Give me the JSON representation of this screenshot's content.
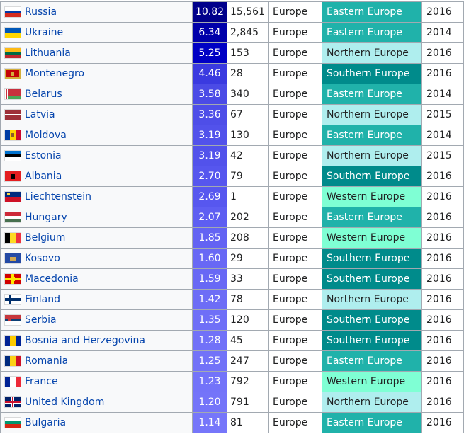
{
  "table": {
    "rows": [
      {
        "country": "Russia",
        "rate": "10.82",
        "count": "15,561",
        "continent": "Europe",
        "region": "Eastern Europe",
        "year": "2016",
        "flag": "russia-flag-icon",
        "rate_color": "#00008b",
        "region_color": "#20b2aa",
        "region_text_color": "#ffffff"
      },
      {
        "country": "Ukraine",
        "rate": "6.34",
        "count": "2,845",
        "continent": "Europe",
        "region": "Eastern Europe",
        "year": "2014",
        "flag": "ukraine-flag-icon",
        "rate_color": "#0000aa",
        "region_color": "#20b2aa",
        "region_text_color": "#ffffff"
      },
      {
        "country": "Lithuania",
        "rate": "5.25",
        "count": "153",
        "continent": "Europe",
        "region": "Northern Europe",
        "year": "2016",
        "flag": "lithuania-flag-icon",
        "rate_color": "#0000c4",
        "region_color": "#afeeee",
        "region_text_color": "#202122"
      },
      {
        "country": "Montenegro",
        "rate": "4.46",
        "count": "28",
        "continent": "Europe",
        "region": "Southern Europe",
        "year": "2016",
        "flag": "montenegro-flag-icon",
        "rate_color": "#3a3ae0",
        "region_color": "#008b8b",
        "region_text_color": "#ffffff"
      },
      {
        "country": "Belarus",
        "rate": "3.58",
        "count": "340",
        "continent": "Europe",
        "region": "Eastern Europe",
        "year": "2014",
        "flag": "belarus-flag-icon",
        "rate_color": "#4b4be6",
        "region_color": "#20b2aa",
        "region_text_color": "#ffffff"
      },
      {
        "country": "Latvia",
        "rate": "3.36",
        "count": "67",
        "continent": "Europe",
        "region": "Northern Europe",
        "year": "2015",
        "flag": "latvia-flag-icon",
        "rate_color": "#4e4ee8",
        "region_color": "#afeeee",
        "region_text_color": "#202122"
      },
      {
        "country": "Moldova",
        "rate": "3.19",
        "count": "130",
        "continent": "Europe",
        "region": "Eastern Europe",
        "year": "2014",
        "flag": "moldova-flag-icon",
        "rate_color": "#5252eb",
        "region_color": "#20b2aa",
        "region_text_color": "#ffffff"
      },
      {
        "country": "Estonia",
        "rate": "3.19",
        "count": "42",
        "continent": "Europe",
        "region": "Northern Europe",
        "year": "2015",
        "flag": "estonia-flag-icon",
        "rate_color": "#5252eb",
        "region_color": "#afeeee",
        "region_text_color": "#202122"
      },
      {
        "country": "Albania",
        "rate": "2.70",
        "count": "79",
        "continent": "Europe",
        "region": "Southern Europe",
        "year": "2016",
        "flag": "albania-flag-icon",
        "rate_color": "#5656ee",
        "region_color": "#008b8b",
        "region_text_color": "#ffffff"
      },
      {
        "country": "Liechtenstein",
        "rate": "2.69",
        "count": "1",
        "continent": "Europe",
        "region": "Western Europe",
        "year": "2016",
        "flag": "liechtenstein-flag-icon",
        "rate_color": "#5757ef",
        "region_color": "#7fffd4",
        "region_text_color": "#202122"
      },
      {
        "country": "Hungary",
        "rate": "2.07",
        "count": "202",
        "continent": "Europe",
        "region": "Eastern Europe",
        "year": "2016",
        "flag": "hungary-flag-icon",
        "rate_color": "#5e5ef2",
        "region_color": "#20b2aa",
        "region_text_color": "#ffffff"
      },
      {
        "country": "Belgium",
        "rate": "1.85",
        "count": "208",
        "continent": "Europe",
        "region": "Western Europe",
        "year": "2016",
        "flag": "belgium-flag-icon",
        "rate_color": "#6363f3",
        "region_color": "#7fffd4",
        "region_text_color": "#202122"
      },
      {
        "country": "Kosovo",
        "rate": "1.60",
        "count": "29",
        "continent": "Europe",
        "region": "Southern Europe",
        "year": "2016",
        "flag": "kosovo-flag-icon",
        "rate_color": "#6868f5",
        "region_color": "#008b8b",
        "region_text_color": "#ffffff"
      },
      {
        "country": "Macedonia",
        "rate": "1.59",
        "count": "33",
        "continent": "Europe",
        "region": "Southern Europe",
        "year": "2016",
        "flag": "macedonia-flag-icon",
        "rate_color": "#6868f5",
        "region_color": "#008b8b",
        "region_text_color": "#ffffff"
      },
      {
        "country": "Finland",
        "rate": "1.42",
        "count": "78",
        "continent": "Europe",
        "region": "Northern Europe",
        "year": "2016",
        "flag": "finland-flag-icon",
        "rate_color": "#6d6df6",
        "region_color": "#afeeee",
        "region_text_color": "#202122"
      },
      {
        "country": "Serbia",
        "rate": "1.35",
        "count": "120",
        "continent": "Europe",
        "region": "Southern Europe",
        "year": "2016",
        "flag": "serbia-flag-icon",
        "rate_color": "#6f6ff7",
        "region_color": "#008b8b",
        "region_text_color": "#ffffff"
      },
      {
        "country": "Bosnia and Herzegovina",
        "rate": "1.28",
        "count": "45",
        "continent": "Europe",
        "region": "Southern Europe",
        "year": "2016",
        "flag": "bosnia-flag-icon",
        "rate_color": "#7171f8",
        "region_color": "#008b8b",
        "region_text_color": "#ffffff"
      },
      {
        "country": "Romania",
        "rate": "1.25",
        "count": "247",
        "continent": "Europe",
        "region": "Eastern Europe",
        "year": "2016",
        "flag": "romania-flag-icon",
        "rate_color": "#7272f8",
        "region_color": "#20b2aa",
        "region_text_color": "#ffffff"
      },
      {
        "country": "France",
        "rate": "1.23",
        "count": "792",
        "continent": "Europe",
        "region": "Western Europe",
        "year": "2016",
        "flag": "france-flag-icon",
        "rate_color": "#7373f9",
        "region_color": "#7fffd4",
        "region_text_color": "#202122"
      },
      {
        "country": "United Kingdom",
        "rate": "1.20",
        "count": "791",
        "continent": "Europe",
        "region": "Northern Europe",
        "year": "2016",
        "flag": "uk-flag-icon",
        "rate_color": "#7474f9",
        "region_color": "#afeeee",
        "region_text_color": "#202122"
      },
      {
        "country": "Bulgaria",
        "rate": "1.14",
        "count": "81",
        "continent": "Europe",
        "region": "Eastern Europe",
        "year": "2016",
        "flag": "bulgaria-flag-icon",
        "rate_color": "#7676fa",
        "region_color": "#20b2aa",
        "region_text_color": "#ffffff"
      }
    ]
  }
}
